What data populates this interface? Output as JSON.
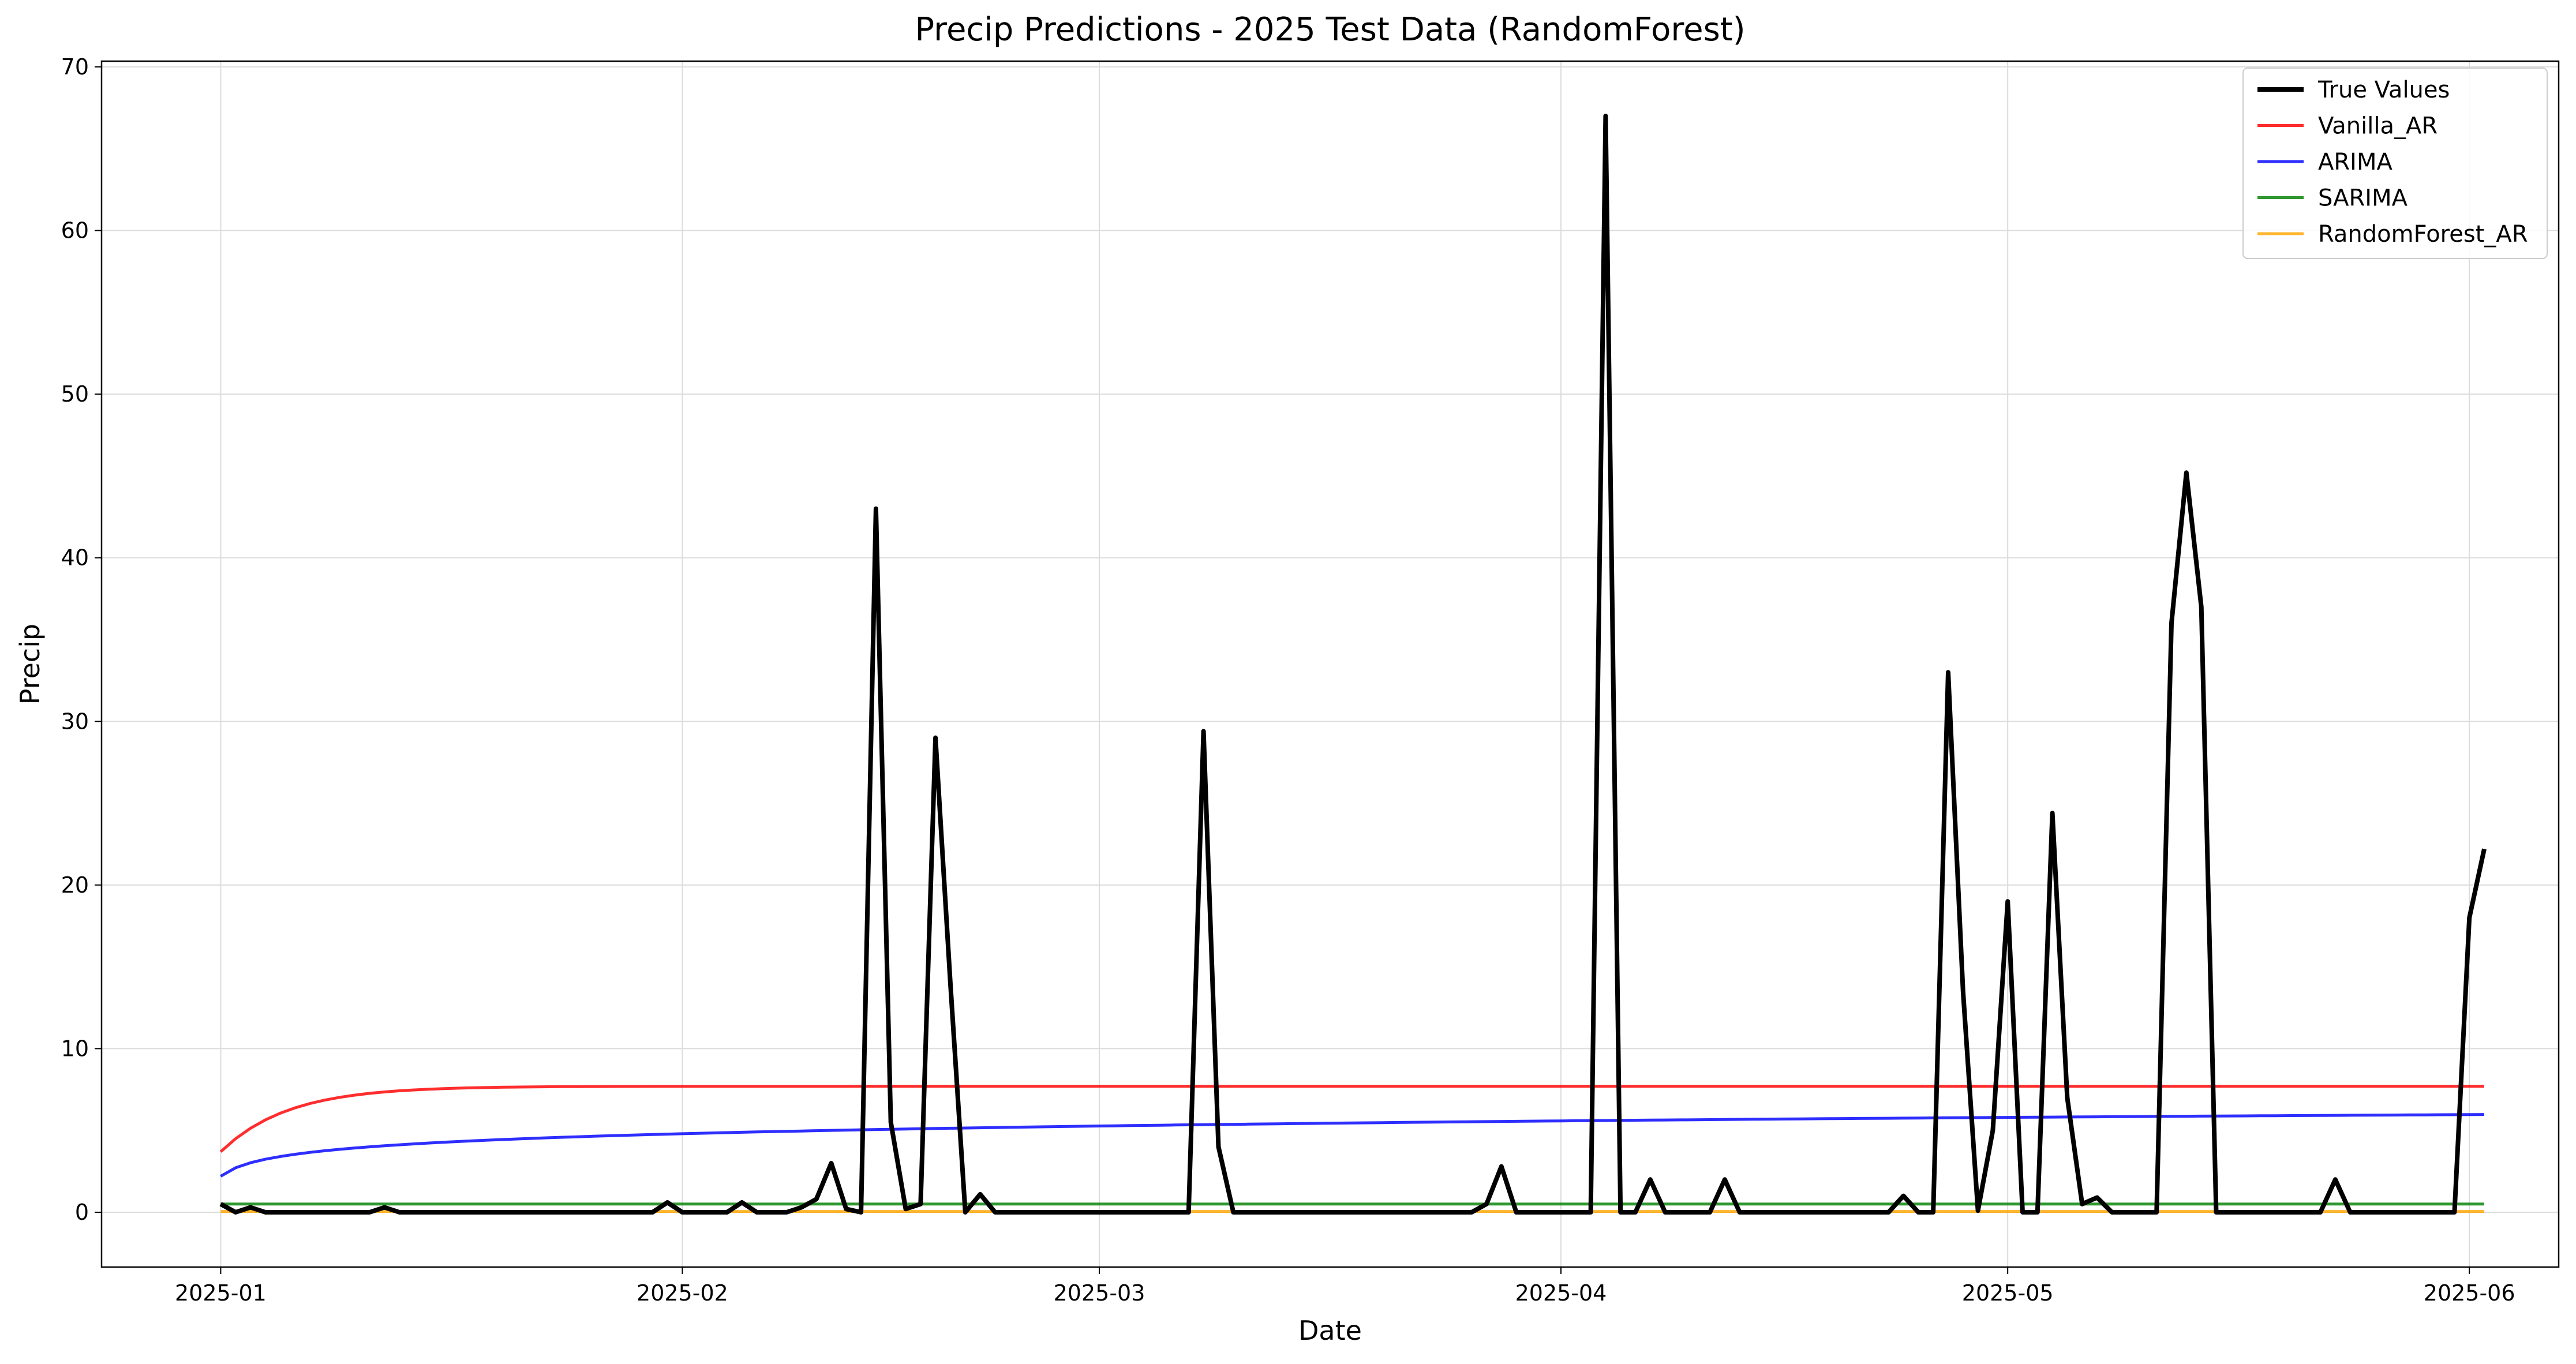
{
  "chart_data": {
    "type": "line",
    "title": "Precip Predictions - 2025 Test Data (RandomForest)",
    "xlabel": "Date",
    "ylabel": "Precip",
    "x_start": "2025-01-01",
    "x_ticks": [
      "2025-01",
      "2025-02",
      "2025-03",
      "2025-04",
      "2025-05",
      "2025-06"
    ],
    "xlim": [
      "2024-12-24",
      "2025-06-07"
    ],
    "ylim": [
      -3.35,
      70.35
    ],
    "y_ticks": [
      0,
      10,
      20,
      30,
      40,
      50,
      60,
      70
    ],
    "grid": true,
    "legend": "top-right",
    "series": [
      {
        "name": "True Values",
        "color": "#000000",
        "values": [
          0.5,
          0,
          0.3,
          0,
          0,
          0,
          0,
          0,
          0,
          0,
          0,
          0.3,
          0,
          0,
          0,
          0,
          0,
          0,
          0,
          0,
          0,
          0,
          0,
          0,
          0,
          0,
          0,
          0,
          0,
          0,
          0.6,
          0,
          0,
          0,
          0,
          0.6,
          0,
          0,
          0,
          0.3,
          0.8,
          3,
          0.2,
          0,
          43,
          5.5,
          0.2,
          0.5,
          29,
          14,
          0,
          1.1,
          0,
          0,
          0,
          0,
          0,
          0,
          0,
          0,
          0,
          0,
          0,
          0,
          0,
          0,
          29.4,
          4,
          0,
          0,
          0,
          0,
          0,
          0,
          0,
          0,
          0,
          0,
          0,
          0,
          0,
          0,
          0,
          0,
          0,
          0.5,
          2.8,
          0,
          0,
          0,
          0,
          0,
          0,
          67,
          0,
          0,
          2,
          0,
          0,
          0,
          0,
          2,
          0,
          0,
          0,
          0,
          0,
          0,
          0,
          0,
          0,
          0,
          0,
          1,
          0,
          0,
          33,
          13.5,
          0.1,
          5,
          19,
          0,
          0,
          24.4,
          7,
          0.5,
          0.9,
          0,
          0,
          0,
          0,
          36,
          45.2,
          37,
          0,
          0,
          0,
          0,
          0,
          0,
          0,
          0,
          2,
          0,
          0,
          0,
          0,
          0,
          0,
          0,
          0,
          18,
          22.2
        ]
      },
      {
        "name": "Vanilla_AR",
        "color": "#ff0000",
        "model": "vanilla"
      },
      {
        "name": "ARIMA",
        "color": "#0000ff",
        "model": "arima"
      },
      {
        "name": "SARIMA",
        "color": "#008000",
        "constant": 0.5
      },
      {
        "name": "RandomForest_AR",
        "color": "#ffa500",
        "constant": 0.05
      }
    ]
  }
}
